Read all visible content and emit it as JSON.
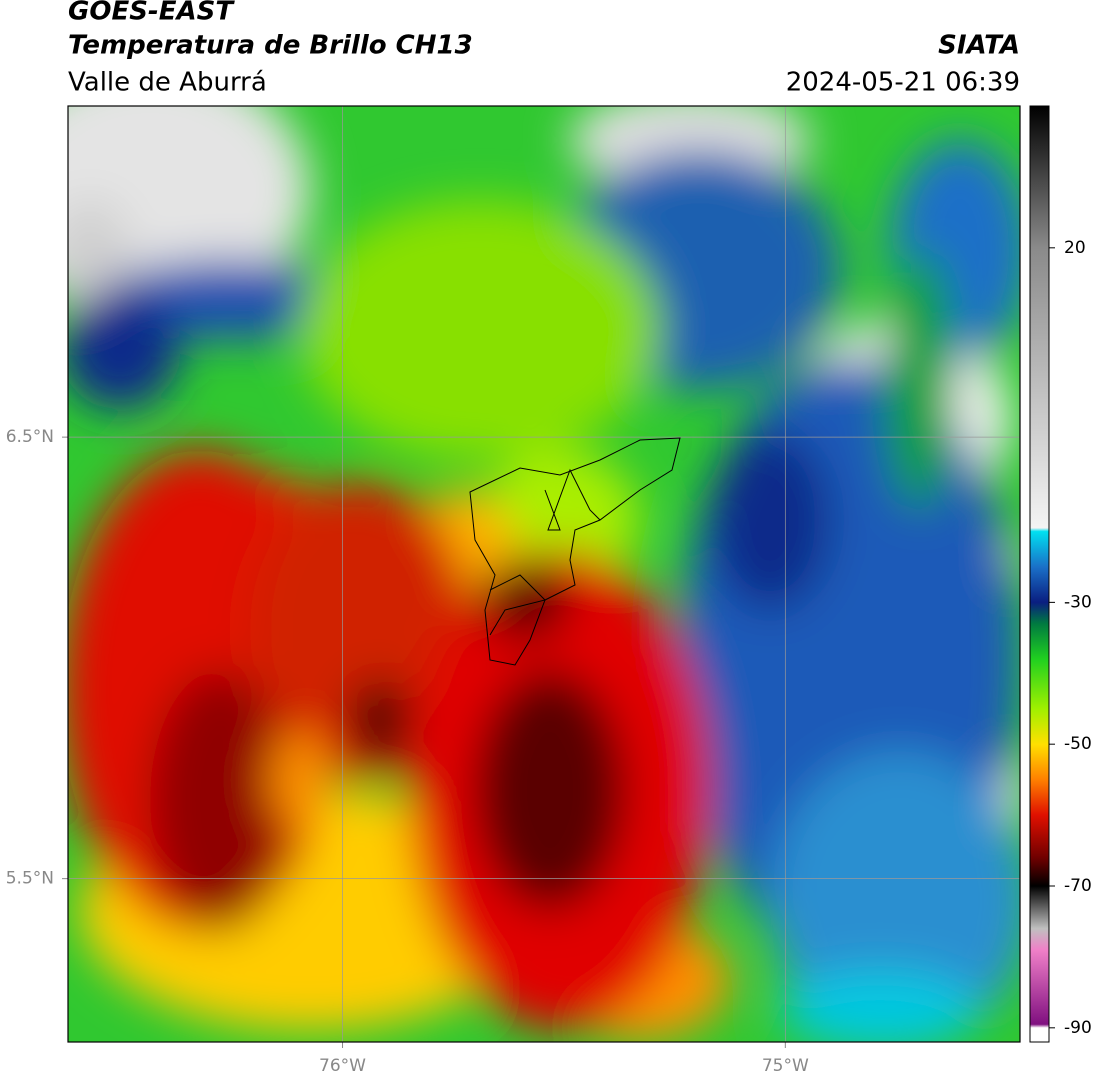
{
  "header": {
    "title": "GOES-EAST",
    "subtitle": "Temperatura de Brillo CH13",
    "region": "Valle de Aburrá",
    "source": "SIATA",
    "datetime": "2024-05-21 06:39"
  },
  "map": {
    "type": "map",
    "xlim": [
      -76.62,
      -74.47
    ],
    "ylim": [
      5.13,
      7.25
    ],
    "xticks": [
      {
        "value": -76,
        "label": "76°W"
      },
      {
        "value": -75,
        "label": "75°W"
      }
    ],
    "yticks": [
      {
        "value": 6.5,
        "label": "6.5°N"
      },
      {
        "value": 5.5,
        "label": "5.5°N"
      }
    ],
    "grid": true,
    "colorbar": {
      "lim": [
        -92,
        40
      ],
      "ticks": [
        20,
        -30,
        -50,
        -70,
        -90
      ],
      "colormap": [
        {
          "value": 40,
          "color": "#000000"
        },
        {
          "value": 20,
          "color": "#8a8a8a"
        },
        {
          "value": -19.5,
          "color": "#f4f4f4"
        },
        {
          "value": -20,
          "color": "#00e0f0"
        },
        {
          "value": -25,
          "color": "#1a70c8"
        },
        {
          "value": -30,
          "color": "#0a1e80"
        },
        {
          "value": -33,
          "color": "#007a40"
        },
        {
          "value": -38,
          "color": "#20d020"
        },
        {
          "value": -45,
          "color": "#a0f000"
        },
        {
          "value": -50,
          "color": "#ffe000"
        },
        {
          "value": -55,
          "color": "#ff8000"
        },
        {
          "value": -60,
          "color": "#e01000"
        },
        {
          "value": -66,
          "color": "#700000"
        },
        {
          "value": -70,
          "color": "#000000"
        },
        {
          "value": -76,
          "color": "#c0c0c0"
        },
        {
          "value": -79,
          "color": "#f080c8"
        },
        {
          "value": -89.5,
          "color": "#801080"
        },
        {
          "value": -90,
          "color": "#ffffff"
        },
        {
          "value": -92,
          "color": "#ffffff"
        }
      ]
    }
  }
}
